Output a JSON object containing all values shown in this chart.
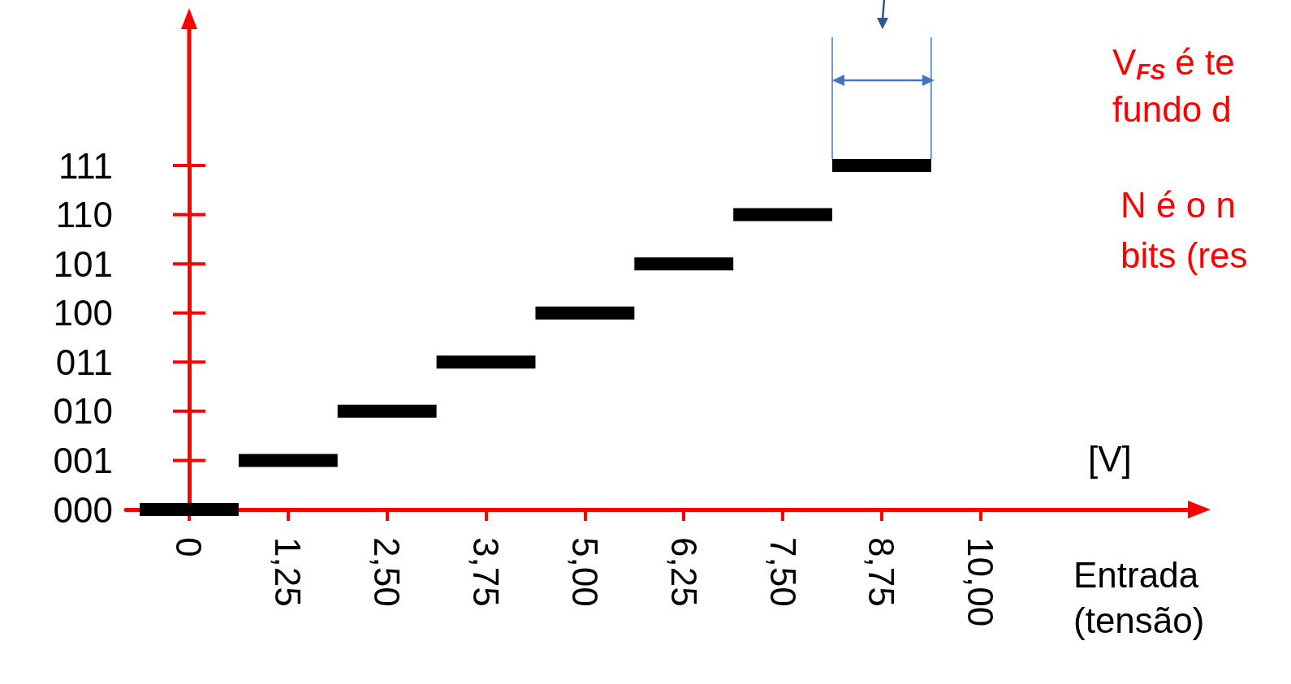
{
  "chart_data": {
    "type": "bar",
    "orientation": "horizontal",
    "xlabel": "Entrada (tensão)",
    "categories": [
      "111",
      "110",
      "101",
      "100",
      "011",
      "010",
      "001",
      "000"
    ],
    "base": [
      8.125,
      6.875,
      5.625,
      4.375,
      3.125,
      1.875,
      0.625,
      -0.625
    ],
    "values": [
      1.25,
      1.25,
      1.25,
      1.25,
      1.25,
      1.25,
      1.25,
      1.25
    ],
    "color": "#000000",
    "xlim": [
      -0.8,
      12.7
    ],
    "xticks": [
      {
        "value": 0,
        "label": "0"
      },
      {
        "value": 1.25,
        "label": "1,25"
      },
      {
        "value": 2.5,
        "label": "2,50"
      },
      {
        "value": 3.75,
        "label": "3,75"
      },
      {
        "value": 5,
        "label": "5,00"
      },
      {
        "value": 6.25,
        "label": "6,25"
      },
      {
        "value": 7.5,
        "label": "7,50"
      },
      {
        "value": 8.75,
        "label": "8,75"
      },
      {
        "value": 10,
        "label": "10,00"
      }
    ],
    "annotations": [
      "[V]",
      "V$_{FS}$ é te",
      "fundo d",
      "N é o n",
      "bits (res"
    ],
    "grid": false
  }
}
